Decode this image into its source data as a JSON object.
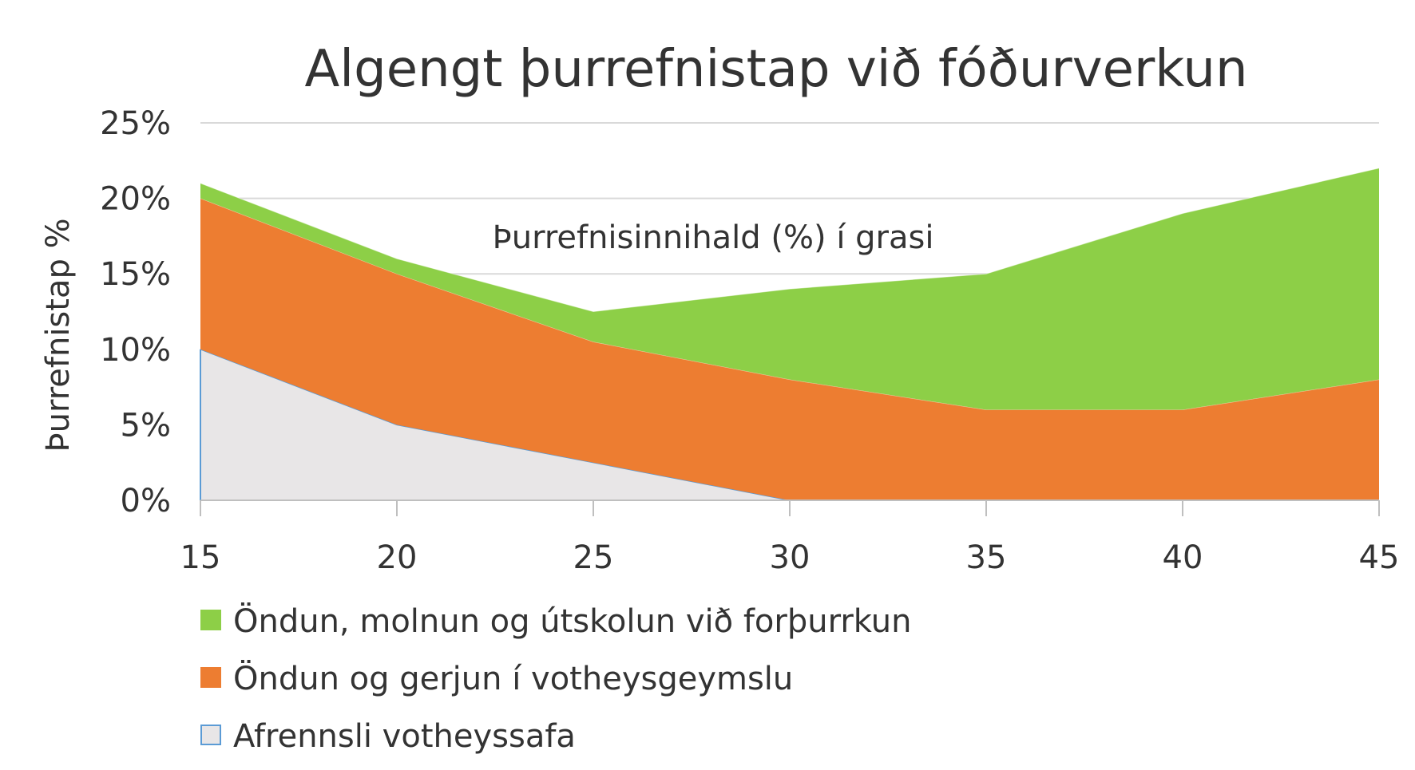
{
  "chart_data": {
    "type": "area",
    "stacked": true,
    "title": "Algengt þurrefnistap við fóðurverkun",
    "xlabel": "Þurrefnisinnihald (%) í grasi",
    "ylabel": "Þurrefnistap %",
    "x": [
      15,
      20,
      25,
      30,
      35,
      40,
      45
    ],
    "x_ticks": [
      "15",
      "20",
      "25",
      "30",
      "35",
      "40",
      "45"
    ],
    "y_ticks": [
      "0%",
      "5%",
      "10%",
      "15%",
      "20%",
      "25%"
    ],
    "ylim": [
      0,
      25
    ],
    "grid": true,
    "legend_position": "bottom",
    "series": [
      {
        "name": "Afrennsli votheyssafa",
        "values": [
          10,
          5,
          2.5,
          0,
          0,
          0,
          0
        ],
        "color": "#e8e6e7",
        "stroke": "#5b9bd5"
      },
      {
        "name": "Öndun og gerjun í votheysgeymslu",
        "values": [
          10,
          10,
          8,
          8,
          6,
          6,
          8
        ],
        "color": "#ed7d31"
      },
      {
        "name": "Öndun, molnun og útskolun við forþurrkun",
        "values": [
          1,
          1,
          2,
          6,
          9,
          13,
          14
        ],
        "color": "#8dcf47"
      }
    ],
    "legend_order": [
      2,
      1,
      0
    ]
  }
}
